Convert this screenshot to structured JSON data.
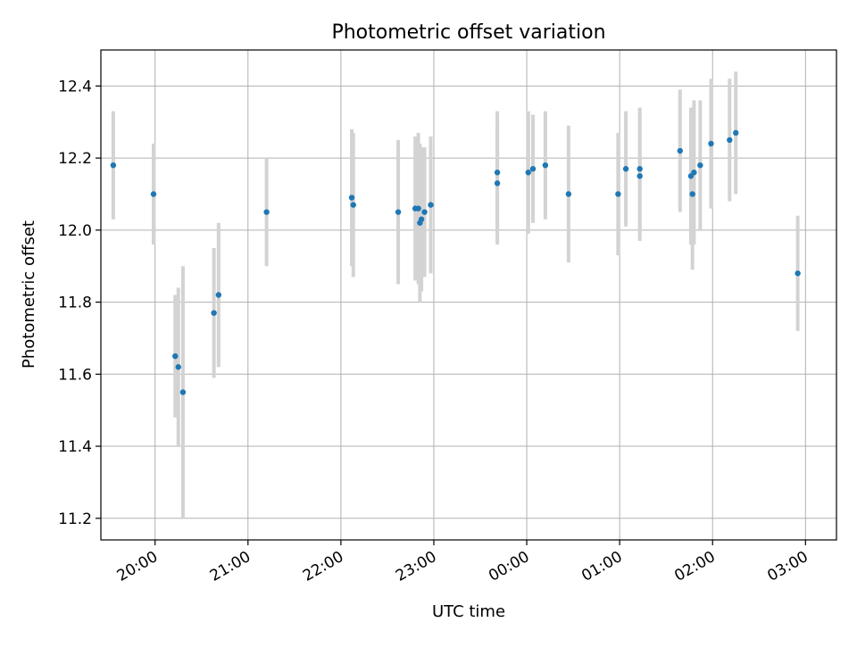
{
  "chart_data": {
    "type": "scatter",
    "title": "Photometric offset variation",
    "xlabel": "UTC time",
    "ylabel": "Photometric offset",
    "x_axis_type": "time",
    "xlim": [
      "19:25",
      "03:20"
    ],
    "ylim": [
      11.14,
      12.5
    ],
    "y_ticks": [
      11.2,
      11.4,
      11.6,
      11.8,
      12.0,
      12.2,
      12.4
    ],
    "y_tick_labels": [
      "11.2",
      "11.4",
      "11.6",
      "11.8",
      "12.0",
      "12.2",
      "12.4"
    ],
    "x_ticks": [
      "20:00",
      "21:00",
      "22:00",
      "23:00",
      "00:00",
      "01:00",
      "02:00",
      "03:00"
    ],
    "x_tick_labels": [
      "20:00",
      "21:00",
      "22:00",
      "23:00",
      "00:00",
      "01:00",
      "02:00",
      "03:00"
    ],
    "x_tick_label_rotation_deg": 30,
    "grid": true,
    "marker_color": "#1f77b4",
    "errorbar_color": "#d3d3d3",
    "series": [
      {
        "points": [
          {
            "x": "19:33",
            "y": 12.18,
            "err": 0.15
          },
          {
            "x": "19:59",
            "y": 12.1,
            "err": 0.14
          },
          {
            "x": "20:13",
            "y": 11.65,
            "err": 0.17
          },
          {
            "x": "20:15",
            "y": 11.62,
            "err": 0.22
          },
          {
            "x": "20:18",
            "y": 11.55,
            "err": 0.35
          },
          {
            "x": "20:38",
            "y": 11.77,
            "err": 0.18
          },
          {
            "x": "20:41",
            "y": 11.82,
            "err": 0.2
          },
          {
            "x": "21:12",
            "y": 12.05,
            "err": 0.15
          },
          {
            "x": "22:07",
            "y": 12.09,
            "err": 0.19
          },
          {
            "x": "22:08",
            "y": 12.07,
            "err": 0.2
          },
          {
            "x": "22:37",
            "y": 12.05,
            "err": 0.2
          },
          {
            "x": "22:48",
            "y": 12.06,
            "err": 0.2
          },
          {
            "x": "22:50",
            "y": 12.06,
            "err": 0.21
          },
          {
            "x": "22:51",
            "y": 12.02,
            "err": 0.22
          },
          {
            "x": "22:52",
            "y": 12.03,
            "err": 0.2
          },
          {
            "x": "22:54",
            "y": 12.05,
            "err": 0.18
          },
          {
            "x": "22:58",
            "y": 12.07,
            "err": 0.19
          },
          {
            "x": "23:41",
            "y": 12.13,
            "err": 0.17
          },
          {
            "x": "23:41",
            "y": 12.16,
            "err": 0.17
          },
          {
            "x": "00:01",
            "y": 12.16,
            "err": 0.17
          },
          {
            "x": "00:04",
            "y": 12.17,
            "err": 0.15
          },
          {
            "x": "00:12",
            "y": 12.18,
            "err": 0.15
          },
          {
            "x": "00:27",
            "y": 12.1,
            "err": 0.19
          },
          {
            "x": "00:59",
            "y": 12.1,
            "err": 0.17
          },
          {
            "x": "01:04",
            "y": 12.17,
            "err": 0.16
          },
          {
            "x": "01:13",
            "y": 12.15,
            "err": 0.18
          },
          {
            "x": "01:13",
            "y": 12.17,
            "err": 0.17
          },
          {
            "x": "01:39",
            "y": 12.22,
            "err": 0.17
          },
          {
            "x": "01:46",
            "y": 12.15,
            "err": 0.19
          },
          {
            "x": "01:47",
            "y": 12.1,
            "err": 0.21
          },
          {
            "x": "01:48",
            "y": 12.16,
            "err": 0.2
          },
          {
            "x": "01:52",
            "y": 12.18,
            "err": 0.18
          },
          {
            "x": "01:59",
            "y": 12.24,
            "err": 0.18
          },
          {
            "x": "02:11",
            "y": 12.25,
            "err": 0.17
          },
          {
            "x": "02:15",
            "y": 12.27,
            "err": 0.17
          },
          {
            "x": "02:55",
            "y": 11.88,
            "err": 0.16
          }
        ]
      }
    ]
  }
}
